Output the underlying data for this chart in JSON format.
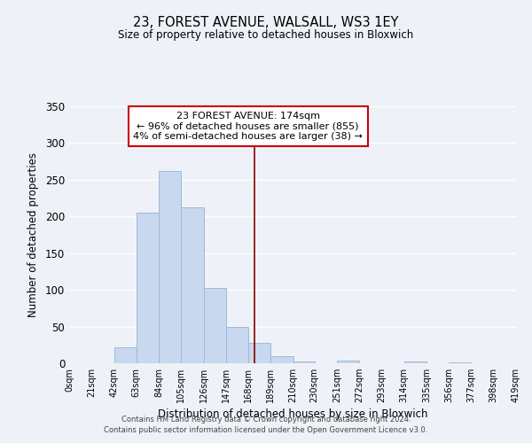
{
  "title": "23, FOREST AVENUE, WALSALL, WS3 1EY",
  "subtitle": "Size of property relative to detached houses in Bloxwich",
  "xlabel": "Distribution of detached houses by size in Bloxwich",
  "ylabel": "Number of detached properties",
  "bin_edges": [
    0,
    21,
    42,
    63,
    84,
    105,
    126,
    147,
    168,
    189,
    210,
    230,
    251,
    272,
    293,
    314,
    335,
    356,
    377,
    398,
    419
  ],
  "bar_heights": [
    0,
    0,
    22,
    205,
    262,
    213,
    103,
    50,
    28,
    10,
    3,
    0,
    4,
    0,
    0,
    2,
    0,
    1,
    0,
    0
  ],
  "bar_color": "#c8d8ee",
  "bar_edge_color": "#a0b8d8",
  "vline_x": 174,
  "vline_color": "#8b0000",
  "ylim": [
    0,
    350
  ],
  "yticks": [
    0,
    50,
    100,
    150,
    200,
    250,
    300,
    350
  ],
  "annotation_title": "23 FOREST AVENUE: 174sqm",
  "annotation_line1": "← 96% of detached houses are smaller (855)",
  "annotation_line2": "4% of semi-detached houses are larger (38) →",
  "annotation_box_color": "#ffffff",
  "annotation_box_edge": "#cc0000",
  "tick_labels": [
    "0sqm",
    "21sqm",
    "42sqm",
    "63sqm",
    "84sqm",
    "105sqm",
    "126sqm",
    "147sqm",
    "168sqm",
    "189sqm",
    "210sqm",
    "230sqm",
    "251sqm",
    "272sqm",
    "293sqm",
    "314sqm",
    "335sqm",
    "356sqm",
    "377sqm",
    "398sqm",
    "419sqm"
  ],
  "footer1": "Contains HM Land Registry data © Crown copyright and database right 2024.",
  "footer2": "Contains public sector information licensed under the Open Government Licence v3.0.",
  "background_color": "#eef2f8",
  "grid_color": "#ffffff"
}
